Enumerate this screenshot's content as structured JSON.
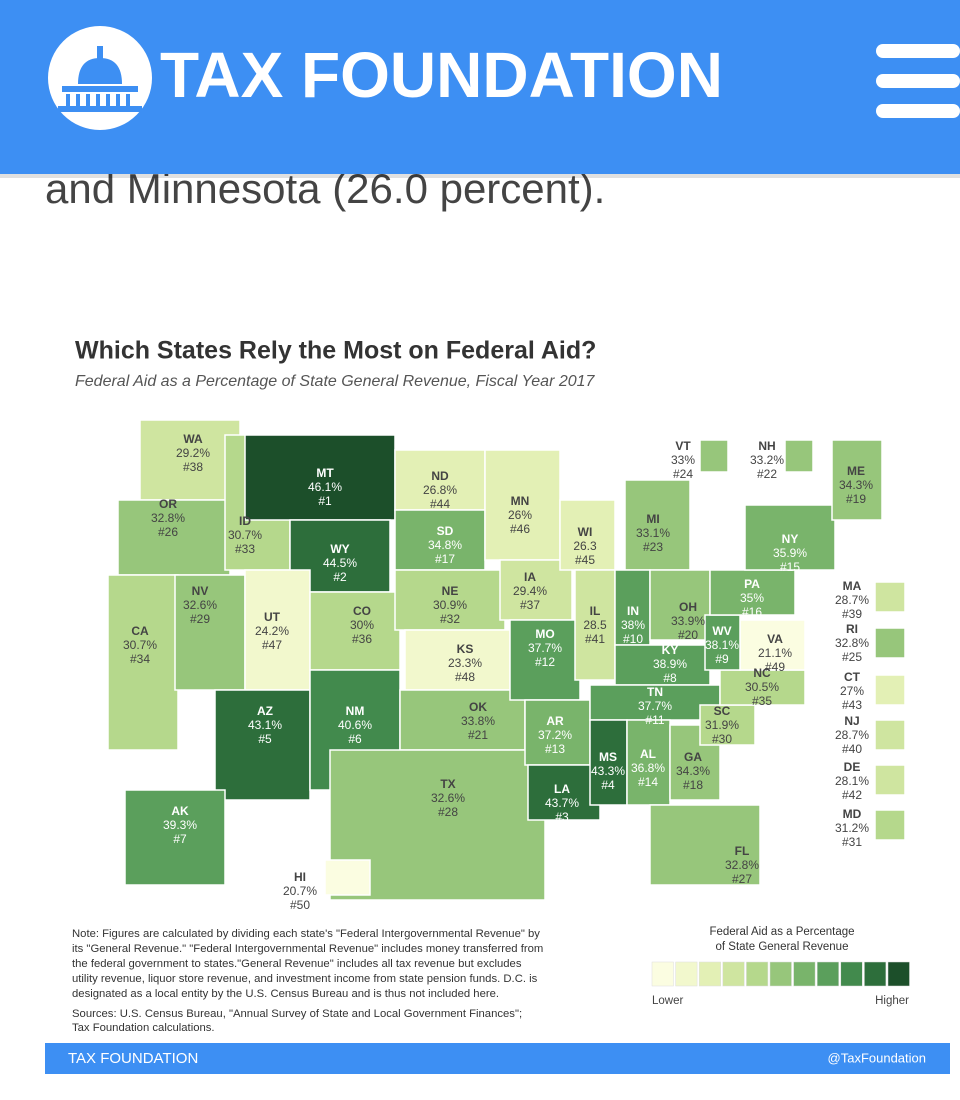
{
  "header": {
    "logo": "TAX FOUNDATION"
  },
  "body_text": "and Minnesota (26.0 percent).",
  "chart_data": {
    "type": "choropleth",
    "title": "Which States Rely the Most on Federal Aid?",
    "subtitle": "Federal Aid as a Percentage of State General Revenue, Fiscal Year 2017",
    "states": [
      {
        "abbr": "WA",
        "value": 29.2,
        "label": "29.2%",
        "rank": "#38"
      },
      {
        "abbr": "OR",
        "value": 32.8,
        "label": "32.8%",
        "rank": "#26"
      },
      {
        "abbr": "CA",
        "value": 30.7,
        "label": "30.7%",
        "rank": "#34"
      },
      {
        "abbr": "NV",
        "value": 32.6,
        "label": "32.6%",
        "rank": "#29"
      },
      {
        "abbr": "ID",
        "value": 30.7,
        "label": "30.7%",
        "rank": "#33"
      },
      {
        "abbr": "MT",
        "value": 46.1,
        "label": "46.1%",
        "rank": "#1"
      },
      {
        "abbr": "WY",
        "value": 44.5,
        "label": "44.5%",
        "rank": "#2"
      },
      {
        "abbr": "UT",
        "value": 24.2,
        "label": "24.2%",
        "rank": "#47"
      },
      {
        "abbr": "CO",
        "value": 30,
        "label": "30%",
        "rank": "#36"
      },
      {
        "abbr": "AZ",
        "value": 43.1,
        "label": "43.1%",
        "rank": "#5"
      },
      {
        "abbr": "NM",
        "value": 40.6,
        "label": "40.6%",
        "rank": "#6"
      },
      {
        "abbr": "ND",
        "value": 26.8,
        "label": "26.8%",
        "rank": "#44"
      },
      {
        "abbr": "SD",
        "value": 34.8,
        "label": "34.8%",
        "rank": "#17"
      },
      {
        "abbr": "NE",
        "value": 30.9,
        "label": "30.9%",
        "rank": "#32"
      },
      {
        "abbr": "KS",
        "value": 23.3,
        "label": "23.3%",
        "rank": "#48"
      },
      {
        "abbr": "OK",
        "value": 33.8,
        "label": "33.8%",
        "rank": "#21"
      },
      {
        "abbr": "TX",
        "value": 32.6,
        "label": "32.6%",
        "rank": "#28"
      },
      {
        "abbr": "MN",
        "value": 26,
        "label": "26%",
        "rank": "#46"
      },
      {
        "abbr": "IA",
        "value": 29.4,
        "label": "29.4%",
        "rank": "#37"
      },
      {
        "abbr": "MO",
        "value": 37.7,
        "label": "37.7%",
        "rank": "#12"
      },
      {
        "abbr": "AR",
        "value": 37.2,
        "label": "37.2%",
        "rank": "#13"
      },
      {
        "abbr": "LA",
        "value": 43.7,
        "label": "43.7%",
        "rank": "#3"
      },
      {
        "abbr": "WI",
        "value": 26.3,
        "label": "26.3",
        "rank": "#45"
      },
      {
        "abbr": "IL",
        "value": 28.5,
        "label": "28.5",
        "rank": "#41"
      },
      {
        "abbr": "MI",
        "value": 33.1,
        "label": "33.1%",
        "rank": "#23"
      },
      {
        "abbr": "IN",
        "value": 38,
        "label": "38%",
        "rank": "#10"
      },
      {
        "abbr": "OH",
        "value": 33.9,
        "label": "33.9%",
        "rank": "#20"
      },
      {
        "abbr": "KY",
        "value": 38.9,
        "label": "38.9%",
        "rank": "#8"
      },
      {
        "abbr": "TN",
        "value": 37.7,
        "label": "37.7%",
        "rank": "#11"
      },
      {
        "abbr": "MS",
        "value": 43.3,
        "label": "43.3%",
        "rank": "#4"
      },
      {
        "abbr": "AL",
        "value": 36.8,
        "label": "36.8%",
        "rank": "#14"
      },
      {
        "abbr": "GA",
        "value": 34.3,
        "label": "34.3%",
        "rank": "#18"
      },
      {
        "abbr": "FL",
        "value": 32.8,
        "label": "32.8%",
        "rank": "#27"
      },
      {
        "abbr": "SC",
        "value": 31.9,
        "label": "31.9%",
        "rank": "#30"
      },
      {
        "abbr": "NC",
        "value": 30.5,
        "label": "30.5%",
        "rank": "#35"
      },
      {
        "abbr": "VA",
        "value": 21.1,
        "label": "21.1%",
        "rank": "#49"
      },
      {
        "abbr": "WV",
        "value": 38.1,
        "label": "38.1%",
        "rank": "#9"
      },
      {
        "abbr": "PA",
        "value": 35,
        "label": "35%",
        "rank": "#16"
      },
      {
        "abbr": "NY",
        "value": 35.9,
        "label": "35.9%",
        "rank": "#15"
      },
      {
        "abbr": "ME",
        "value": 34.3,
        "label": "34.3%",
        "rank": "#19"
      },
      {
        "abbr": "AK",
        "value": 39.3,
        "label": "39.3%",
        "rank": "#7"
      },
      {
        "abbr": "HI",
        "value": 20.7,
        "label": "20.7%",
        "rank": "#50"
      },
      {
        "abbr": "VT",
        "value": 33,
        "label": "33%",
        "rank": "#24"
      },
      {
        "abbr": "NH",
        "value": 33.2,
        "label": "33.2%",
        "rank": "#22"
      },
      {
        "abbr": "MA",
        "value": 28.7,
        "label": "28.7%",
        "rank": "#39"
      },
      {
        "abbr": "RI",
        "value": 32.8,
        "label": "32.8%",
        "rank": "#25"
      },
      {
        "abbr": "CT",
        "value": 27,
        "label": "27%",
        "rank": "#43"
      },
      {
        "abbr": "NJ",
        "value": 28.7,
        "label": "28.7%",
        "rank": "#40"
      },
      {
        "abbr": "DE",
        "value": 28.1,
        "label": "28.1%",
        "rank": "#42"
      },
      {
        "abbr": "MD",
        "value": 31.2,
        "label": "31.2%",
        "rank": "#31"
      }
    ],
    "scale_colors": [
      "#fbfde1",
      "#f2f8cd",
      "#e3f0b5",
      "#cfe5a0",
      "#b5d88c",
      "#97c67b",
      "#79b46b",
      "#5b9f5c",
      "#428a4d",
      "#2d6e3b",
      "#1c4f2a"
    ],
    "legend_title": [
      "Federal Aid as a Percentage",
      "of State General Revenue"
    ],
    "legend_low": "Lower",
    "legend_high": "Higher",
    "note": [
      "Note: Figures are calculated by dividing each state's \"Federal Intergovernmental Revenue\" by",
      "its \"General Revenue.\" \"Federal Intergovernmental Revenue\" includes money transferred from",
      "the federal government to states.\"General Revenue\" includes all tax revenue but excludes",
      "utility revenue, liquor store revenue, and investment income from state pension funds. D.C. is",
      "designated as a local entity by the U.S. Census Bureau and is thus not included here."
    ],
    "sources": [
      "Sources: U.S. Census Bureau, \"Annual Survey of State and Local Government Finances\";",
      "Tax Foundation calculations."
    ]
  },
  "footer": {
    "left": "TAX FOUNDATION",
    "right": "@TaxFoundation"
  }
}
